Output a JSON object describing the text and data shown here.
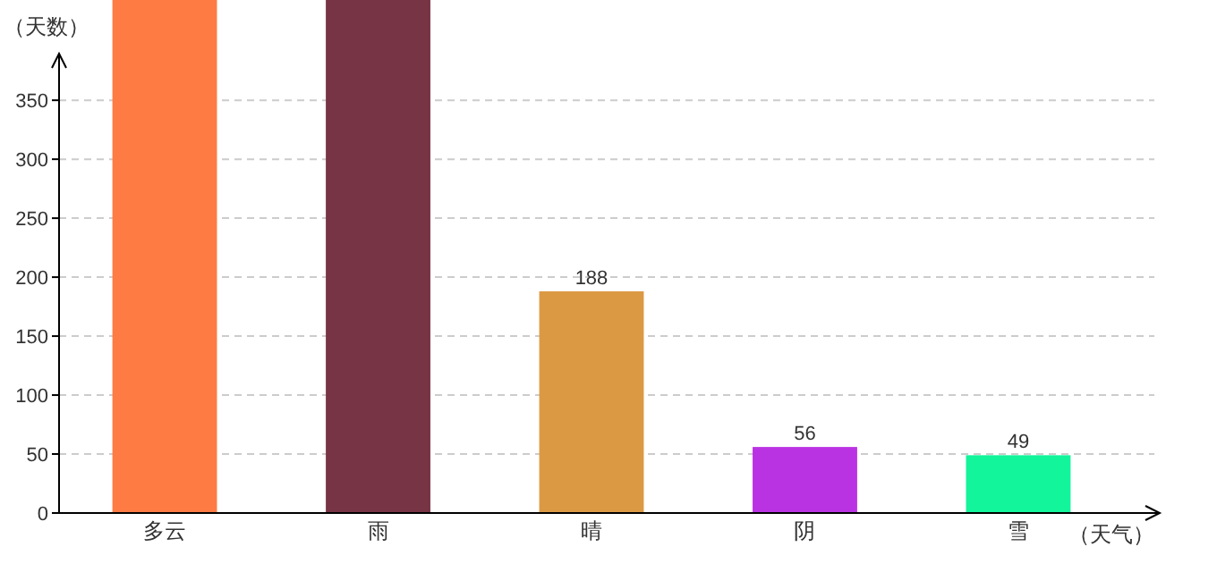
{
  "chart_data": {
    "type": "bar",
    "xlabel": "（天气）",
    "ylabel": "（天数）",
    "categories": [
      "多云",
      "雨",
      "晴",
      "阴",
      "雪"
    ],
    "values": [
      435,
      435,
      188,
      56,
      49
    ],
    "colors": [
      "#fe7b43",
      "#773445",
      "#dc9944",
      "#ba33e3",
      "#12f59a"
    ],
    "value_labels": [
      null,
      null,
      "188",
      "56",
      "49"
    ],
    "ylim": [
      0,
      435
    ],
    "yticks": [
      0,
      50,
      100,
      150,
      200,
      250,
      300,
      350
    ],
    "grid": "y"
  }
}
